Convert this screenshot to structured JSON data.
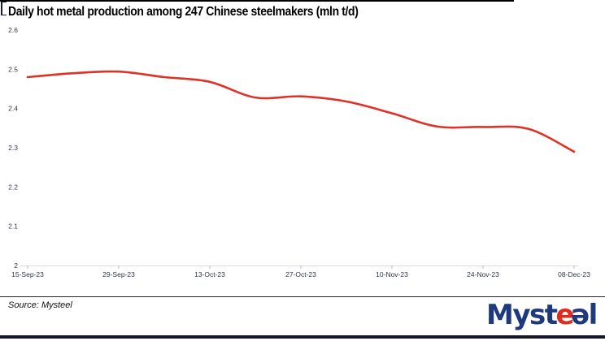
{
  "title": "Daily hot metal production among 247 Chinese steelmakers (mln t/d)",
  "footer": {
    "source_label": "Source: Mysteel"
  },
  "logo": {
    "prefix": "Myst",
    "swirl_red": "e",
    "swirl_blue": "ə",
    "suffix": "l",
    "navy_color": "#1e3a7c",
    "red_color": "#e02b20"
  },
  "colors": {
    "line": "#e03127",
    "axis_line": "#d9d9d9",
    "tick_mark": "#bfbfbf",
    "tick_label": "#30364a",
    "bottom_bar": "#12152b"
  },
  "chart_data": {
    "type": "line",
    "title": "Daily hot metal production among 247 Chinese steelmakers (mln t/d)",
    "x": [
      "15-Sep-23",
      "22-Sep-23",
      "29-Sep-23",
      "06-Oct-23",
      "13-Oct-23",
      "20-Oct-23",
      "27-Oct-23",
      "03-Nov-23",
      "10-Nov-23",
      "17-Nov-23",
      "24-Nov-23",
      "01-Dec-23",
      "08-Dec-23"
    ],
    "series": [
      {
        "name": "Daily hot metal production (mln t/d)",
        "color": "#e03127",
        "values": [
          2.48,
          2.49,
          2.494,
          2.48,
          2.468,
          2.428,
          2.431,
          2.418,
          2.388,
          2.354,
          2.353,
          2.348,
          2.29
        ]
      }
    ],
    "x_tick_labels": [
      "15-Sep-23",
      "29-Sep-23",
      "13-Oct-23",
      "27-Oct-23",
      "10-Nov-23",
      "24-Nov-23",
      "08-Dec-23"
    ],
    "y_ticks": [
      {
        "label": "2.6",
        "value": 2.6
      },
      {
        "label": "2.5",
        "value": 2.5
      },
      {
        "label": "2.4",
        "value": 2.4
      },
      {
        "label": "2.3",
        "value": 2.3
      },
      {
        "label": "2.2",
        "value": 2.2
      },
      {
        "label": "2.1",
        "value": 2.1
      },
      {
        "label": "2",
        "value": 2.0
      }
    ],
    "ylim": [
      2.0,
      2.6
    ],
    "xlabel": "",
    "ylabel": "",
    "grid": false,
    "legend": "none",
    "smooth": true
  }
}
